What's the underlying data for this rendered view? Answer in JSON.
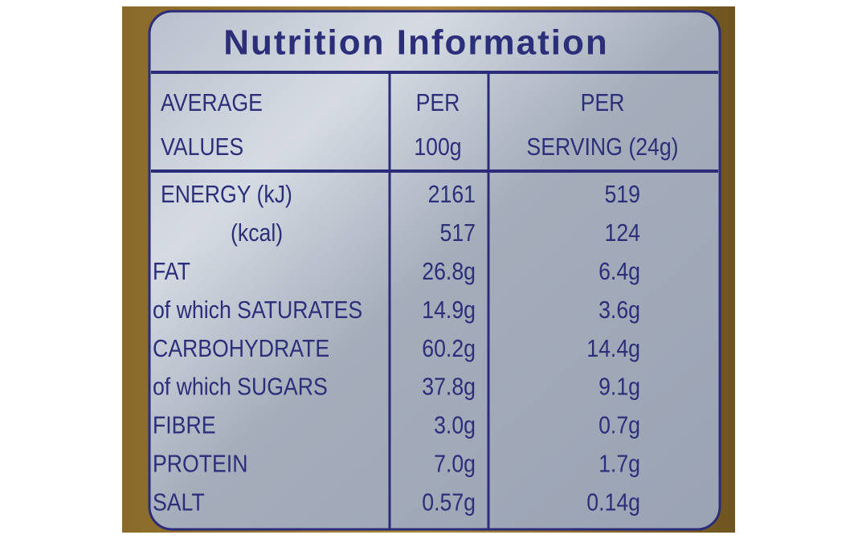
{
  "header": {
    "title": "Nutrition Information"
  },
  "table": {
    "columns": [
      [
        "AVERAGE",
        "VALUES"
      ],
      [
        "PER",
        "100g"
      ],
      [
        "PER",
        "SERVING (24g)"
      ]
    ],
    "rows": [
      [
        "ENERGY (kJ)",
        "2161",
        "519"
      ],
      [
        "(kcal)",
        "517",
        "124"
      ],
      [
        "FAT",
        "26.8g",
        "6.4g"
      ],
      [
        "of which SATURATES",
        "14.9g",
        "3.6g"
      ],
      [
        "CARBOHYDRATE",
        "60.2g",
        "14.4g"
      ],
      [
        "of which SUGARS",
        "37.8g",
        "9.1g"
      ],
      [
        "FIBRE",
        "3.0g",
        "0.7g"
      ],
      [
        "PROTEIN",
        "7.0g",
        "1.7g"
      ],
      [
        "SALT",
        "0.57g",
        "0.14g"
      ]
    ]
  }
}
